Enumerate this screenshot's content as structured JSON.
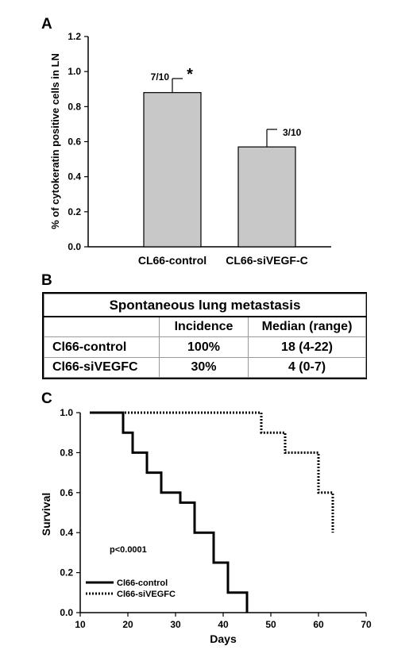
{
  "panels": {
    "a": "A",
    "b": "B",
    "c": "C"
  },
  "chart_data": [
    {
      "type": "bar",
      "categories": [
        "CL66-control",
        "CL66-siVEGF-C"
      ],
      "values": [
        0.88,
        0.57
      ],
      "errors": [
        0.08,
        0.1
      ],
      "data_labels": [
        "7/10",
        "3/10"
      ],
      "annotations": [
        "*"
      ],
      "xlabel": "",
      "ylabel": "% of cytokeratin positive cells in LN",
      "ylim": [
        0.0,
        1.2
      ],
      "yticks": [
        "0.0",
        "0.2",
        "0.4",
        "0.6",
        "0.8",
        "1.0",
        "1.2"
      ],
      "bar_color": "#c8c8c8",
      "grid": false
    },
    {
      "type": "table",
      "title": "Spontaneous lung metastasis",
      "columns": [
        "",
        "Incidence",
        "Median (range)"
      ],
      "rows": [
        [
          "Cl66-control",
          "100%",
          "18 (4-22)"
        ],
        [
          "Cl66-siVEGFC",
          "30%",
          "4 (0-7)"
        ]
      ]
    },
    {
      "type": "line",
      "step": true,
      "xlabel": "Days",
      "ylabel": "Survival",
      "xlim": [
        10,
        70
      ],
      "ylim": [
        0.0,
        1.0
      ],
      "xticks": [
        "10",
        "20",
        "30",
        "40",
        "50",
        "60",
        "70"
      ],
      "yticks": [
        "0.0",
        "0.2",
        "0.4",
        "0.6",
        "0.8",
        "1.0"
      ],
      "annotations": [
        "p<0.0001"
      ],
      "legend_position": "bottom-left",
      "series": [
        {
          "name": "Cl66-control",
          "style": "solid",
          "x": [
            12,
            19,
            21,
            24,
            27,
            31,
            34,
            38,
            41,
            45
          ],
          "y": [
            1.0,
            0.9,
            0.8,
            0.7,
            0.6,
            0.55,
            0.4,
            0.25,
            0.1,
            0.0
          ]
        },
        {
          "name": "Cl66-siVEGFC",
          "style": "dotted",
          "x": [
            12,
            48,
            53,
            60,
            63
          ],
          "y": [
            1.0,
            0.9,
            0.8,
            0.6,
            0.4
          ]
        }
      ]
    }
  ]
}
